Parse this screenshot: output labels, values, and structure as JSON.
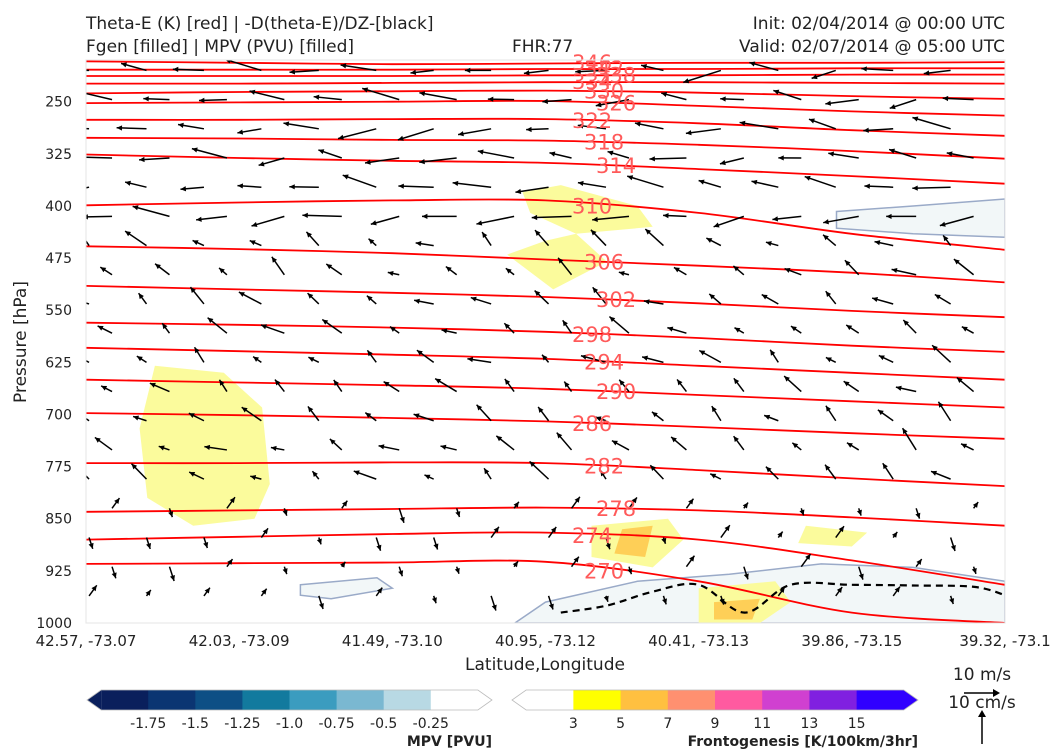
{
  "header": {
    "line1_left": "Theta-E (K) [red] | -D(theta-E)/DZ-[black]",
    "line2_left": "Fgen [filled] | MPV (PVU) [filled]",
    "fhr": "FHR:77",
    "init": "Init: 02/04/2014 @ 00:00 UTC",
    "valid": "Valid: 02/07/2014 @ 05:00 UTC"
  },
  "chart_data": {
    "type": "cross-section",
    "xlabel": "Latitude,Longitude",
    "ylabel": "Pressure [hPa]",
    "x_ticks": [
      "42.57, -73.07",
      "42.03, -73.09",
      "41.49, -73.10",
      "40.95, -73.12",
      "40.41, -73.13",
      "39.86, -73.15",
      "39.32, -73.1"
    ],
    "y_ticks": [
      250,
      325,
      400,
      475,
      550,
      625,
      700,
      775,
      850,
      925,
      1000
    ],
    "ylim": [
      1000,
      190
    ],
    "y_inverted": true,
    "theta_e_contours": [
      {
        "label": "346",
        "y": [
          192,
          194,
          196,
          195,
          194,
          194,
          193
        ]
      },
      {
        "label": "342",
        "y": [
          204,
          204,
          204,
          203,
          203,
          202,
          202
        ]
      },
      {
        "label": "338",
        "y": [
          213,
          213,
          213,
          212,
          212,
          211,
          211
        ]
      },
      {
        "label": "334",
        "y": [
          224,
          224,
          223,
          222,
          222,
          223,
          224
        ]
      },
      {
        "label": "330",
        "y": [
          238,
          236,
          235,
          234,
          237,
          242,
          246
        ]
      },
      {
        "label": "326",
        "y": [
          252,
          251,
          250,
          249,
          256,
          264,
          270
        ]
      },
      {
        "label": "322",
        "y": [
          276,
          276,
          275,
          275,
          281,
          291,
          299
        ]
      },
      {
        "label": "318",
        "y": [
          302,
          303,
          305,
          306,
          312,
          321,
          332
        ]
      },
      {
        "label": "314",
        "y": [
          326,
          331,
          335,
          338,
          347,
          357,
          368
        ]
      },
      {
        "label": "310",
        "y": [
          399,
          395,
          392,
          392,
          410,
          440,
          463
        ]
      },
      {
        "label": "306",
        "y": [
          458,
          462,
          468,
          477,
          486,
          496,
          510
        ]
      },
      {
        "label": "302",
        "y": [
          515,
          520,
          525,
          531,
          540,
          551,
          560
        ]
      },
      {
        "label": "298",
        "y": [
          568,
          571,
          575,
          581,
          590,
          601,
          610
        ]
      },
      {
        "label": "294",
        "y": [
          604,
          609,
          614,
          620,
          630,
          640,
          650
        ]
      },
      {
        "label": "290",
        "y": [
          650,
          654,
          658,
          663,
          672,
          681,
          690
        ]
      },
      {
        "label": "286",
        "y": [
          698,
          701,
          705,
          710,
          718,
          727,
          735
        ]
      },
      {
        "label": "282",
        "y": [
          770,
          770,
          769,
          770,
          780,
          792,
          803
        ]
      },
      {
        "label": "278",
        "y": [
          840,
          838,
          836,
          834,
          838,
          848,
          860
        ]
      },
      {
        "label": "274",
        "y": [
          880,
          876,
          872,
          870,
          880,
          910,
          945
        ]
      },
      {
        "label": "270",
        "y": [
          915,
          914,
          913,
          912,
          940,
          985,
          1000
        ]
      }
    ],
    "dtheta_e_dz_dashed": {
      "label": "",
      "x": [
        3.1,
        3.4,
        3.7,
        4.0,
        4.3,
        4.6,
        5.0,
        5.4,
        5.8,
        6.0
      ],
      "y": [
        985,
        975,
        955,
        945,
        985,
        945,
        945,
        946,
        948,
        960
      ]
    },
    "mpv_filled_regions": [
      {
        "x": [
          2.8,
          3.0,
          3.6,
          4.2,
          4.8,
          5.4,
          6.0,
          6.0,
          4.8,
          3.6,
          2.8
        ],
        "y": [
          1000,
          970,
          940,
          930,
          915,
          920,
          940,
          1000,
          1000,
          1000,
          1000
        ],
        "level": "-0.25"
      },
      {
        "x": [
          4.9,
          5.4,
          6.0,
          6.0,
          5.4,
          4.9
        ],
        "y": [
          408,
          400,
          390,
          445,
          440,
          432
        ],
        "level": "-0.25"
      },
      {
        "x": [
          1.4,
          1.9,
          2.0,
          1.6,
          1.4
        ],
        "y": [
          945,
          935,
          950,
          965,
          960
        ],
        "level": "-0.25"
      }
    ],
    "fgen_filled_regions": [
      {
        "x": [
          0.45,
          0.9,
          1.15,
          1.2,
          1.1,
          0.7,
          0.4,
          0.35
        ],
        "y": [
          630,
          640,
          690,
          800,
          850,
          860,
          820,
          720
        ],
        "level": "3"
      },
      {
        "x": [
          2.75,
          3.0,
          3.2,
          3.4,
          3.05
        ],
        "y": [
          470,
          450,
          440,
          480,
          520
        ],
        "level": "3"
      },
      {
        "x": [
          2.85,
          3.1,
          3.6,
          3.7,
          3.2,
          2.9
        ],
        "y": [
          380,
          370,
          400,
          430,
          440,
          410
        ],
        "level": "3"
      },
      {
        "x": [
          3.3,
          3.8,
          3.9,
          3.7,
          3.3
        ],
        "y": [
          860,
          850,
          880,
          920,
          905
        ],
        "level": "3"
      },
      {
        "x": [
          3.5,
          3.7,
          3.65,
          3.45
        ],
        "y": [
          865,
          860,
          905,
          900
        ],
        "level": "5"
      },
      {
        "x": [
          4.0,
          4.5,
          4.6,
          4.4,
          4.0
        ],
        "y": [
          950,
          940,
          970,
          1000,
          1000
        ],
        "level": "3"
      },
      {
        "x": [
          4.1,
          4.4,
          4.35,
          4.1
        ],
        "y": [
          970,
          965,
          995,
          995
        ],
        "level": "5"
      },
      {
        "x": [
          4.7,
          5.1,
          5.0,
          4.65
        ],
        "y": [
          860,
          870,
          890,
          885
        ],
        "level": "3"
      }
    ],
    "wind_reference": {
      "speed_label": "10 m/s",
      "vertical_label": "10 cm/s"
    },
    "colorbar_mpv": {
      "label": "MPV [PVU]",
      "ticks": [
        "-1.75",
        "-1.5",
        "-1.25",
        "-1.0",
        "-0.75",
        "-0.5",
        "-0.25"
      ],
      "colors": [
        "#0a1f5c",
        "#0b3572",
        "#0d4f85",
        "#127a9e",
        "#3b9cbf",
        "#7ab8d1",
        "#b8d9e4",
        "#ffffff"
      ]
    },
    "colorbar_fgen": {
      "label": "Frontogenesis [K/100km/3hr]",
      "ticks": [
        "3",
        "5",
        "7",
        "9",
        "11",
        "13",
        "15"
      ],
      "colors": [
        "#ffffff",
        "#ffff00",
        "#ffc040",
        "#ff9070",
        "#ff5aa0",
        "#d040d0",
        "#8020e0",
        "#3000ff"
      ]
    }
  },
  "colors": {
    "theta_e": "#ff0000",
    "label": "#ff5a5a",
    "arrows": "#000000",
    "mpv_line": "#9aaac8",
    "mpv_fill": "#f2f7f8",
    "fgen_fill": "#fbfb9c"
  }
}
